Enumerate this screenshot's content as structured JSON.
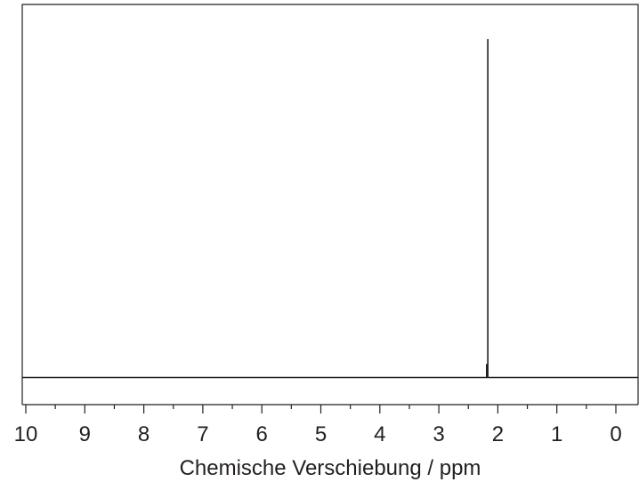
{
  "chart_data": {
    "type": "line",
    "xlabel": "Chemische Verschiebung / ppm",
    "ylabel": "",
    "x_reversed": true,
    "xlim": [
      10,
      -0.3
    ],
    "major_ticks": [
      10,
      9,
      8,
      7,
      6,
      5,
      4,
      3,
      2,
      1,
      0
    ],
    "tick_labels": [
      "10",
      "9",
      "8",
      "7",
      "6",
      "5",
      "4",
      "3",
      "2",
      "1",
      "0"
    ],
    "minor_tick_step": 0.5,
    "grid": false,
    "legend": "none",
    "y_axis_visible": false,
    "peaks": [
      {
        "ppm": 2.17,
        "relative_intensity": 1.0
      },
      {
        "ppm": 2.19,
        "relative_intensity": 0.04
      }
    ]
  },
  "colors": {
    "line": "#231f20",
    "background": "#ffffff"
  }
}
